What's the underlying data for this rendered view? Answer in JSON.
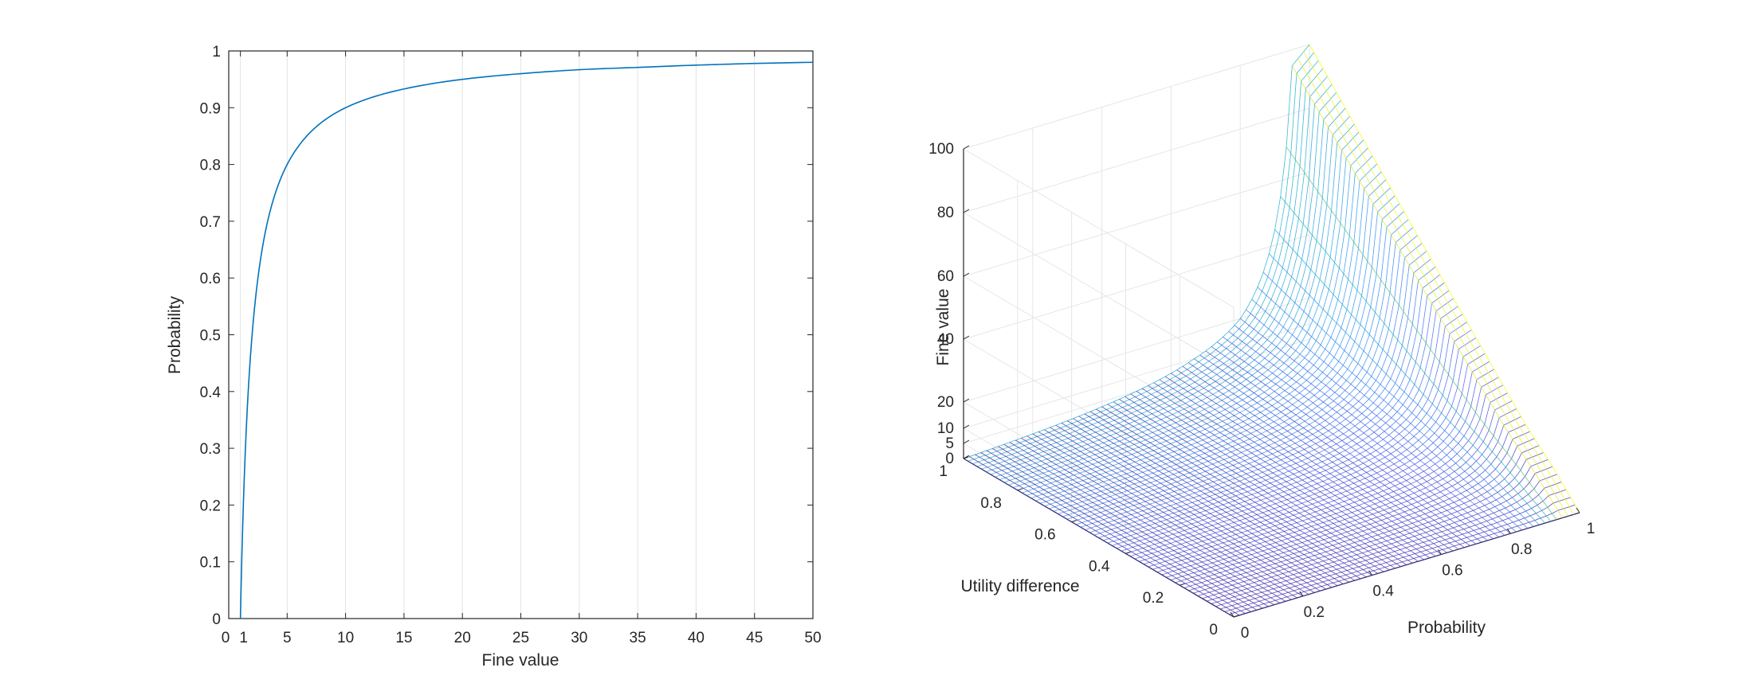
{
  "chart_data": [
    {
      "type": "line",
      "xlabel": "Fine value",
      "ylabel": "Probability",
      "xlim": [
        0,
        50
      ],
      "ylim": [
        0,
        1
      ],
      "xticks": [
        "0",
        "1",
        "5",
        "10",
        "15",
        "20",
        "25",
        "30",
        "35",
        "40",
        "45",
        "50"
      ],
      "yticks": [
        "0",
        "0.1",
        "0.2",
        "0.3",
        "0.4",
        "0.5",
        "0.6",
        "0.7",
        "0.8",
        "0.9",
        "1"
      ],
      "grid": "vertical",
      "series_color": "#0072BD",
      "x": [
        1,
        1.5,
        2,
        3,
        4,
        5,
        6,
        8,
        10,
        15,
        20,
        25,
        30,
        35,
        40,
        45,
        50
      ],
      "y": [
        0,
        0.333,
        0.5,
        0.667,
        0.75,
        0.8,
        0.833,
        0.875,
        0.9,
        0.933,
        0.95,
        0.96,
        0.967,
        0.971,
        0.975,
        0.978,
        0.98
      ]
    },
    {
      "type": "surface",
      "xlabel": "Probability",
      "ylabel": "Utility difference",
      "zlabel": "Fine value",
      "xlim": [
        0,
        1
      ],
      "ylim": [
        0,
        1
      ],
      "zlim": [
        0,
        100
      ],
      "xticks": [
        "0",
        "0.2",
        "0.4",
        "0.6",
        "0.8",
        "1"
      ],
      "yticks": [
        "0",
        "0.2",
        "0.4",
        "0.6",
        "0.8",
        "1"
      ],
      "zticks": [
        "0",
        "5",
        "10",
        "20",
        "40",
        "60",
        "80",
        "100"
      ],
      "colormap": [
        "#3e26a8",
        "#4757ed",
        "#2b8ef7",
        "#13b2c9",
        "#3cc583",
        "#a6c134",
        "#f9fb0e"
      ]
    }
  ]
}
